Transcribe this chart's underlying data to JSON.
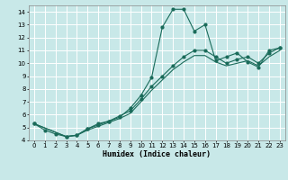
{
  "title": "",
  "xlabel": "Humidex (Indice chaleur)",
  "background_color": "#c8e8e8",
  "grid_color": "#ffffff",
  "line_color": "#1a6b5a",
  "xlim": [
    -0.5,
    23.5
  ],
  "ylim": [
    4,
    14.5
  ],
  "yticks": [
    4,
    5,
    6,
    7,
    8,
    9,
    10,
    11,
    12,
    13,
    14
  ],
  "xticks": [
    0,
    1,
    2,
    3,
    4,
    5,
    6,
    7,
    8,
    9,
    10,
    11,
    12,
    13,
    14,
    15,
    16,
    17,
    18,
    19,
    20,
    21,
    22,
    23
  ],
  "series1": {
    "x": [
      0,
      1,
      2,
      3,
      4,
      5,
      6,
      7,
      8,
      9,
      10,
      11,
      12,
      13,
      14,
      15,
      16,
      17,
      18,
      19,
      20,
      21,
      22,
      23
    ],
    "y": [
      5.3,
      4.8,
      4.5,
      4.3,
      4.4,
      4.9,
      5.3,
      5.5,
      5.8,
      6.5,
      7.5,
      8.9,
      12.8,
      14.2,
      14.2,
      12.5,
      13.0,
      10.2,
      10.5,
      10.8,
      10.1,
      9.7,
      11.0,
      11.2
    ]
  },
  "series2": {
    "x": [
      0,
      3,
      4,
      5,
      6,
      7,
      8,
      9,
      10,
      11,
      12,
      13,
      14,
      15,
      16,
      17,
      18,
      19,
      20,
      21,
      22,
      23
    ],
    "y": [
      5.3,
      4.3,
      4.4,
      4.9,
      5.2,
      5.5,
      5.9,
      6.3,
      7.2,
      8.2,
      9.0,
      9.8,
      10.5,
      11.0,
      11.0,
      10.5,
      10.0,
      10.3,
      10.5,
      10.0,
      10.8,
      11.2
    ]
  },
  "series3": {
    "x": [
      0,
      3,
      4,
      5,
      6,
      7,
      8,
      9,
      10,
      11,
      12,
      13,
      14,
      15,
      16,
      17,
      18,
      19,
      20,
      21,
      22,
      23
    ],
    "y": [
      5.3,
      4.3,
      4.4,
      4.8,
      5.1,
      5.4,
      5.7,
      6.1,
      7.0,
      7.9,
      8.7,
      9.5,
      10.1,
      10.6,
      10.6,
      10.1,
      9.8,
      10.0,
      10.2,
      9.8,
      10.5,
      11.0
    ]
  }
}
